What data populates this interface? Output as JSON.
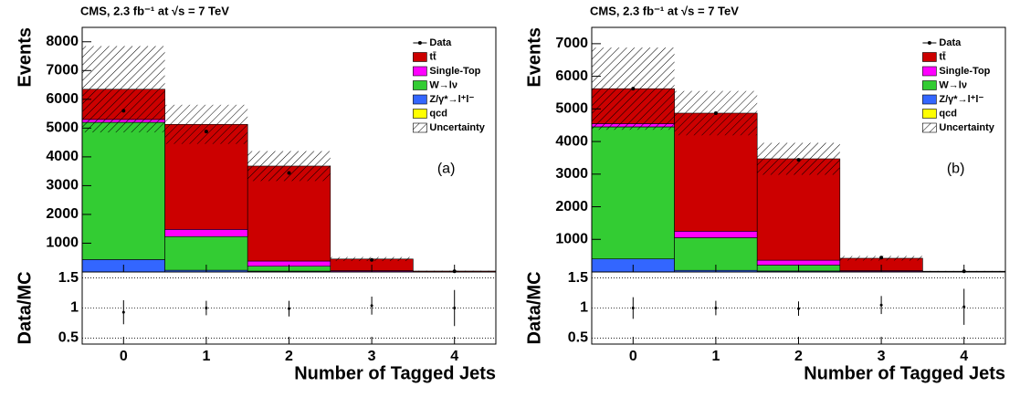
{
  "chart_data": [
    {
      "type": "stacked_histogram",
      "title": "CMS, 2.3 fb⁻¹ at √s = 7 TeV",
      "panel_label": "(a)",
      "ylabel": "Events",
      "xlabel": "Number of Tagged Jets",
      "bins": [
        -0.5,
        0.5,
        1.5,
        2.5,
        3.5,
        4.5
      ],
      "xlim": [
        -0.5,
        4.5
      ],
      "xticks": [
        0,
        1,
        2,
        3,
        4
      ],
      "ylim": [
        0,
        8500
      ],
      "yticks": [
        1000,
        2000,
        3000,
        4000,
        5000,
        6000,
        7000,
        8000
      ],
      "series": [
        {
          "name": "qcd",
          "color": "#ffff00",
          "values": [
            0,
            0,
            0,
            0,
            0
          ]
        },
        {
          "name": "Z/γ*→l⁺l⁻",
          "color": "#3366ff",
          "values": [
            430,
            60,
            30,
            5,
            0
          ]
        },
        {
          "name": "W→lν",
          "color": "#33cc33",
          "values": [
            4770,
            1170,
            170,
            10,
            2
          ]
        },
        {
          "name": "Single-Top",
          "color": "#ff00ff",
          "values": [
            100,
            250,
            180,
            30,
            5
          ]
        },
        {
          "name": "tt̄",
          "color": "#cc0000",
          "values": [
            1050,
            3650,
            3300,
            405,
            25
          ]
        }
      ],
      "data": {
        "name": "Data",
        "values": [
          5600,
          4880,
          3440,
          420,
          25
        ]
      },
      "uncertainty": {
        "name": "Uncertainty",
        "values": [
          1500,
          680,
          520,
          70,
          10
        ]
      },
      "ratio": {
        "ylabel": "Data/MC",
        "ylim": [
          0.4,
          1.6
        ],
        "yticks": [
          0.5,
          1,
          1.5
        ],
        "values": [
          0.93,
          1.0,
          0.99,
          1.04,
          1.0
        ],
        "errors": [
          0.2,
          0.12,
          0.13,
          0.15,
          0.3
        ]
      }
    },
    {
      "type": "stacked_histogram",
      "title": "CMS, 2.3 fb⁻¹ at √s = 7 TeV",
      "panel_label": "(b)",
      "ylabel": "Events",
      "xlabel": "Number of Tagged Jets",
      "bins": [
        -0.5,
        0.5,
        1.5,
        2.5,
        3.5,
        4.5
      ],
      "xlim": [
        -0.5,
        4.5
      ],
      "xticks": [
        0,
        1,
        2,
        3,
        4
      ],
      "ylim": [
        0,
        7500
      ],
      "yticks": [
        1000,
        2000,
        3000,
        4000,
        5000,
        6000,
        7000
      ],
      "series": [
        {
          "name": "qcd",
          "color": "#ffff00",
          "values": [
            0,
            0,
            0,
            0,
            0
          ]
        },
        {
          "name": "Z/γ*→l⁺l⁻",
          "color": "#3366ff",
          "values": [
            400,
            50,
            30,
            5,
            0
          ]
        },
        {
          "name": "W→lν",
          "color": "#33cc33",
          "values": [
            4050,
            1000,
            180,
            10,
            0
          ]
        },
        {
          "name": "Single-Top",
          "color": "#ff00ff",
          "values": [
            100,
            200,
            150,
            25,
            3
          ]
        },
        {
          "name": "tt̄",
          "color": "#cc0000",
          "values": [
            1070,
            3620,
            3110,
            380,
            20
          ]
        }
      ],
      "data": {
        "name": "Data",
        "values": [
          5620,
          4870,
          3440,
          440,
          20
        ]
      },
      "uncertainty": {
        "name": "Uncertainty",
        "values": [
          1260,
          680,
          490,
          70,
          8
        ]
      },
      "ratio": {
        "ylabel": "Data/MC",
        "ylim": [
          0.4,
          1.6
        ],
        "yticks": [
          0.5,
          1,
          1.5
        ],
        "values": [
          1.0,
          1.0,
          0.99,
          1.05,
          1.02
        ],
        "errors": [
          0.18,
          0.12,
          0.12,
          0.15,
          0.3
        ]
      }
    }
  ]
}
